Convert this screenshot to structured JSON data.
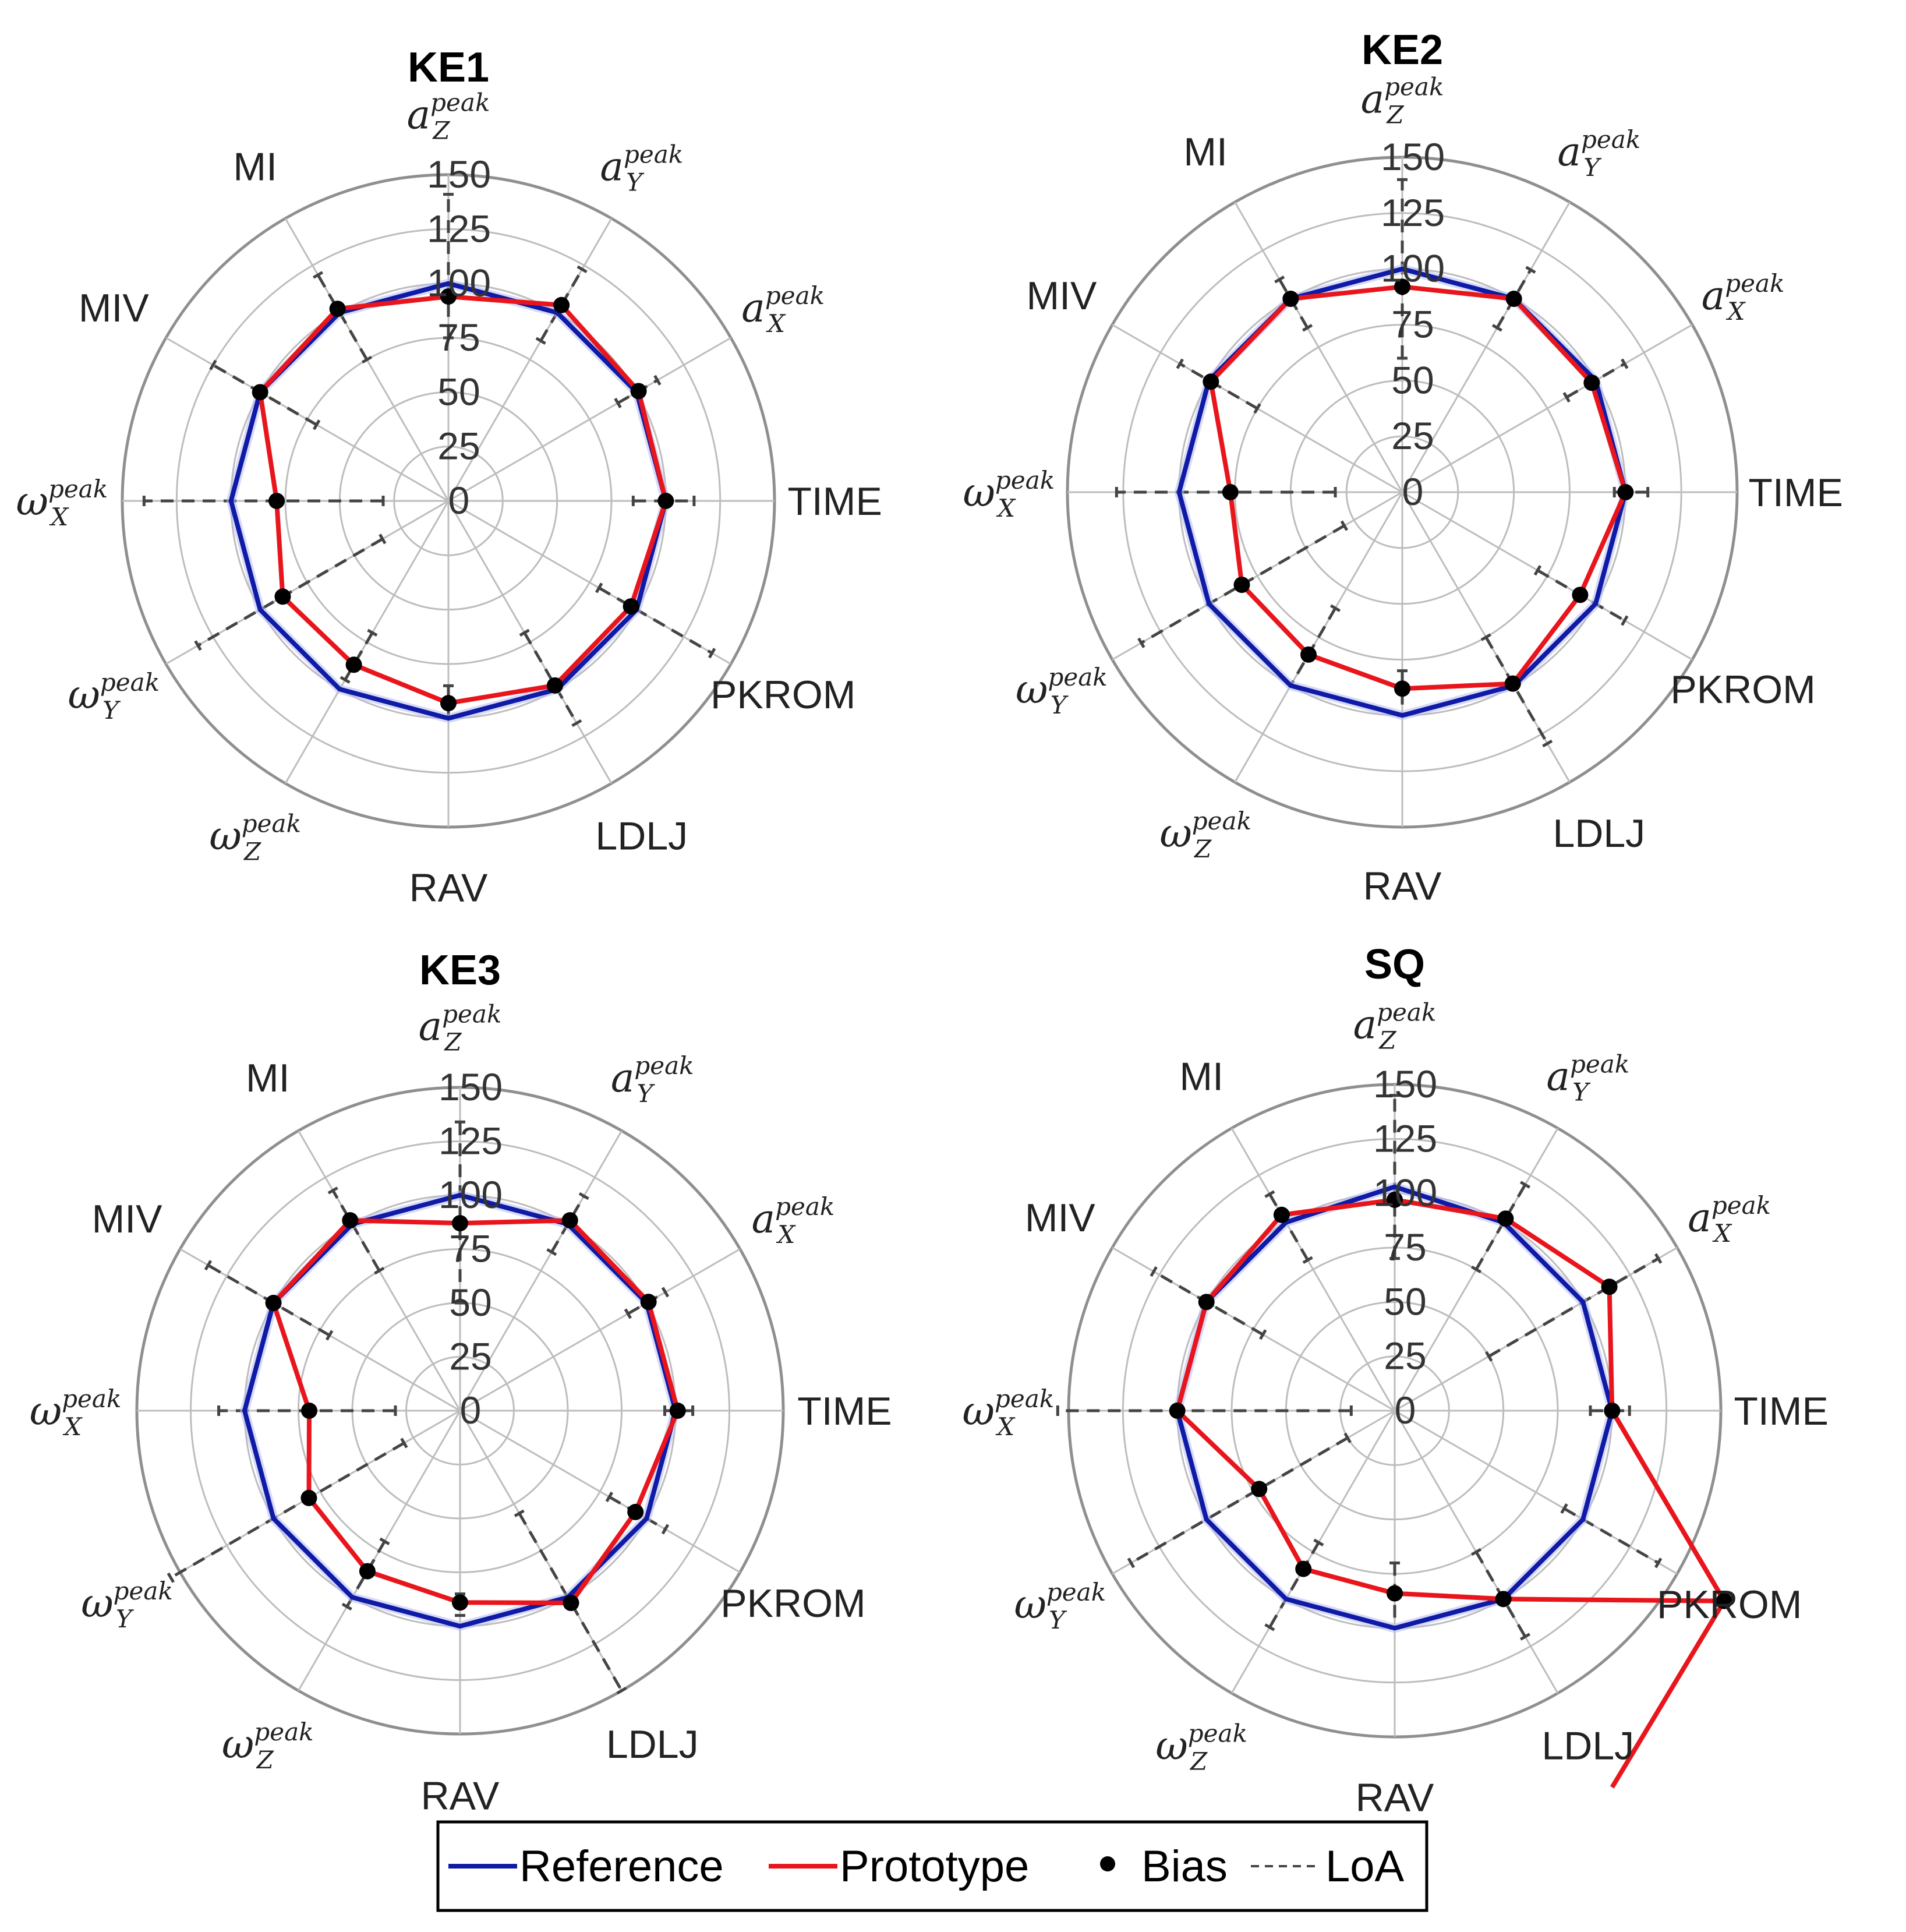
{
  "chart_data": [
    {
      "type": "radar",
      "title": "KE1",
      "r_ticks": [
        "0",
        "25",
        "50",
        "75",
        "100",
        "125",
        "150"
      ],
      "rlim": [
        0,
        150
      ],
      "grid": true,
      "categories": [
        {
          "base": "a",
          "sub": "Z",
          "sup": "peak"
        },
        {
          "base": "a",
          "sub": "Y",
          "sup": "peak"
        },
        {
          "base": "a",
          "sub": "X",
          "sup": "peak"
        },
        {
          "text": "TIME"
        },
        {
          "text": "PKROM"
        },
        {
          "text": "LDLJ"
        },
        {
          "text": "RAV"
        },
        {
          "base": "ω",
          "sub": "Z",
          "sup": "peak"
        },
        {
          "base": "ω",
          "sub": "Y",
          "sup": "peak"
        },
        {
          "base": "ω",
          "sub": "X",
          "sup": "peak"
        },
        {
          "text": "MIV"
        },
        {
          "text": "MI"
        }
      ],
      "series": [
        {
          "name": "Reference",
          "values": [
            100,
            100,
            100,
            100,
            100,
            100,
            100,
            100,
            100,
            100,
            100,
            100
          ]
        },
        {
          "name": "Prototype",
          "values": [
            94,
            104,
            101,
            100,
            97,
            98,
            93,
            87,
            88,
            79,
            100,
            102
          ]
        }
      ],
      "bias": [
        94,
        104,
        101,
        100,
        97,
        98,
        93,
        87,
        88,
        79,
        100,
        102
      ],
      "loa": [
        [
          75,
          141
        ],
        [
          85,
          123
        ],
        [
          90,
          111
        ],
        [
          85,
          113
        ],
        [
          80,
          140
        ],
        [
          70,
          118
        ],
        [
          85,
          100
        ],
        [
          70,
          95
        ],
        [
          35,
          133
        ],
        [
          30,
          140
        ],
        [
          70,
          125
        ],
        [
          75,
          120
        ]
      ]
    },
    {
      "type": "radar",
      "title": "KE2",
      "r_ticks": [
        "0",
        "25",
        "50",
        "75",
        "100",
        "125",
        "150"
      ],
      "rlim": [
        0,
        150
      ],
      "grid": true,
      "categories": [
        {
          "base": "a",
          "sub": "Z",
          "sup": "peak"
        },
        {
          "base": "a",
          "sub": "Y",
          "sup": "peak"
        },
        {
          "base": "a",
          "sub": "X",
          "sup": "peak"
        },
        {
          "text": "TIME"
        },
        {
          "text": "PKROM"
        },
        {
          "text": "LDLJ"
        },
        {
          "text": "RAV"
        },
        {
          "base": "ω",
          "sub": "Z",
          "sup": "peak"
        },
        {
          "base": "ω",
          "sub": "Y",
          "sup": "peak"
        },
        {
          "base": "ω",
          "sub": "X",
          "sup": "peak"
        },
        {
          "text": "MIV"
        },
        {
          "text": "MI"
        }
      ],
      "series": [
        {
          "name": "Reference",
          "values": [
            100,
            100,
            100,
            100,
            100,
            100,
            100,
            100,
            100,
            100,
            100,
            100
          ]
        },
        {
          "name": "Prototype",
          "values": [
            92,
            100,
            98,
            100,
            92,
            99,
            88,
            84,
            83,
            77,
            99,
            100
          ]
        }
      ],
      "bias": [
        92,
        100,
        98,
        100,
        92,
        99,
        88,
        84,
        83,
        77,
        99,
        100
      ],
      "loa": [
        [
          60,
          140
        ],
        [
          85,
          115
        ],
        [
          85,
          115
        ],
        [
          95,
          110
        ],
        [
          70,
          115
        ],
        [
          75,
          130
        ],
        [
          80,
          100
        ],
        [
          60,
          100
        ],
        [
          30,
          135
        ],
        [
          30,
          128
        ],
        [
          75,
          115
        ],
        [
          85,
          110
        ]
      ]
    },
    {
      "type": "radar",
      "title": "KE3",
      "r_ticks": [
        "0",
        "25",
        "50",
        "75",
        "100",
        "125",
        "150"
      ],
      "rlim": [
        0,
        150
      ],
      "grid": true,
      "categories": [
        {
          "base": "a",
          "sub": "Z",
          "sup": "peak"
        },
        {
          "base": "a",
          "sub": "Y",
          "sup": "peak"
        },
        {
          "base": "a",
          "sub": "X",
          "sup": "peak"
        },
        {
          "text": "TIME"
        },
        {
          "text": "PKROM"
        },
        {
          "text": "LDLJ"
        },
        {
          "text": "RAV"
        },
        {
          "base": "ω",
          "sub": "Z",
          "sup": "peak"
        },
        {
          "base": "ω",
          "sub": "Y",
          "sup": "peak"
        },
        {
          "base": "ω",
          "sub": "X",
          "sup": "peak"
        },
        {
          "text": "MIV"
        },
        {
          "text": "MI"
        }
      ],
      "series": [
        {
          "name": "Reference",
          "values": [
            100,
            100,
            100,
            100,
            100,
            100,
            100,
            100,
            100,
            100,
            100,
            100
          ]
        },
        {
          "name": "Prototype",
          "values": [
            87,
            102,
            101,
            101,
            94,
            103,
            89,
            86,
            81,
            70,
            100,
            102
          ]
        }
      ],
      "bias": [
        87,
        102,
        101,
        101,
        94,
        103,
        89,
        86,
        81,
        70,
        100,
        102
      ],
      "loa": [
        [
          50,
          134
        ],
        [
          85,
          115
        ],
        [
          90,
          110
        ],
        [
          95,
          108
        ],
        [
          80,
          110
        ],
        [
          55,
          150
        ],
        [
          85,
          95
        ],
        [
          70,
          105
        ],
        [
          30,
          155
        ],
        [
          30,
          112
        ],
        [
          70,
          135
        ],
        [
          75,
          118
        ]
      ]
    },
    {
      "type": "radar",
      "title": "SQ",
      "r_ticks": [
        "0",
        "25",
        "50",
        "75",
        "100",
        "125",
        "150"
      ],
      "rlim": [
        0,
        150
      ],
      "grid": true,
      "categories": [
        {
          "base": "a",
          "sub": "Z",
          "sup": "peak"
        },
        {
          "base": "a",
          "sub": "Y",
          "sup": "peak"
        },
        {
          "base": "a",
          "sub": "X",
          "sup": "peak"
        },
        {
          "text": "TIME"
        },
        {
          "text": "PKROM"
        },
        {
          "text": "LDLJ"
        },
        {
          "text": "RAV"
        },
        {
          "base": "ω",
          "sub": "Z",
          "sup": "peak"
        },
        {
          "base": "ω",
          "sub": "Y",
          "sup": "peak"
        },
        {
          "base": "ω",
          "sub": "X",
          "sup": "peak"
        },
        {
          "text": "MIV"
        },
        {
          "text": "MI"
        }
      ],
      "series": [
        {
          "name": "Reference",
          "values": [
            103,
            100,
            100,
            100,
            100,
            100,
            100,
            100,
            100,
            100,
            100,
            100
          ]
        },
        {
          "name": "Prototype",
          "values": [
            97,
            102,
            114,
            100,
            175,
            100,
            84,
            84,
            72,
            100,
            100,
            104
          ]
        },
        {
          "name": "",
          "values": [
            null,
            null,
            null,
            100,
            175,
            200,
            null,
            null,
            null,
            null,
            null,
            null
          ]
        }
      ],
      "bias": [
        97,
        102,
        114,
        100,
        175,
        100,
        84,
        84,
        72,
        100,
        100,
        104
      ],
      "loa": [
        [
          70,
          145
        ],
        [
          75,
          120
        ],
        [
          50,
          140
        ],
        [
          90,
          108
        ],
        [
          90,
          140
        ],
        [
          75,
          120
        ],
        [
          70,
          100
        ],
        [
          70,
          115
        ],
        [
          25,
          140
        ],
        [
          20,
          155
        ],
        [
          70,
          128
        ],
        [
          80,
          115
        ]
      ]
    }
  ],
  "legend": {
    "items": [
      {
        "label": "Reference",
        "color": "#0f1aa6",
        "style": "line"
      },
      {
        "label": "Prototype",
        "color": "#e8161c",
        "style": "line"
      },
      {
        "label": "Bias",
        "color": "#000000",
        "style": "dot"
      },
      {
        "label": "LoA",
        "color": "#444444",
        "style": "dashed"
      }
    ]
  },
  "colors": {
    "reference": "#0f1aa6",
    "prototype": "#e8161c",
    "bias": "#000000",
    "loa": "#444444",
    "grid": "#bdbdbd",
    "outer_ring": "#8f8f8f"
  }
}
